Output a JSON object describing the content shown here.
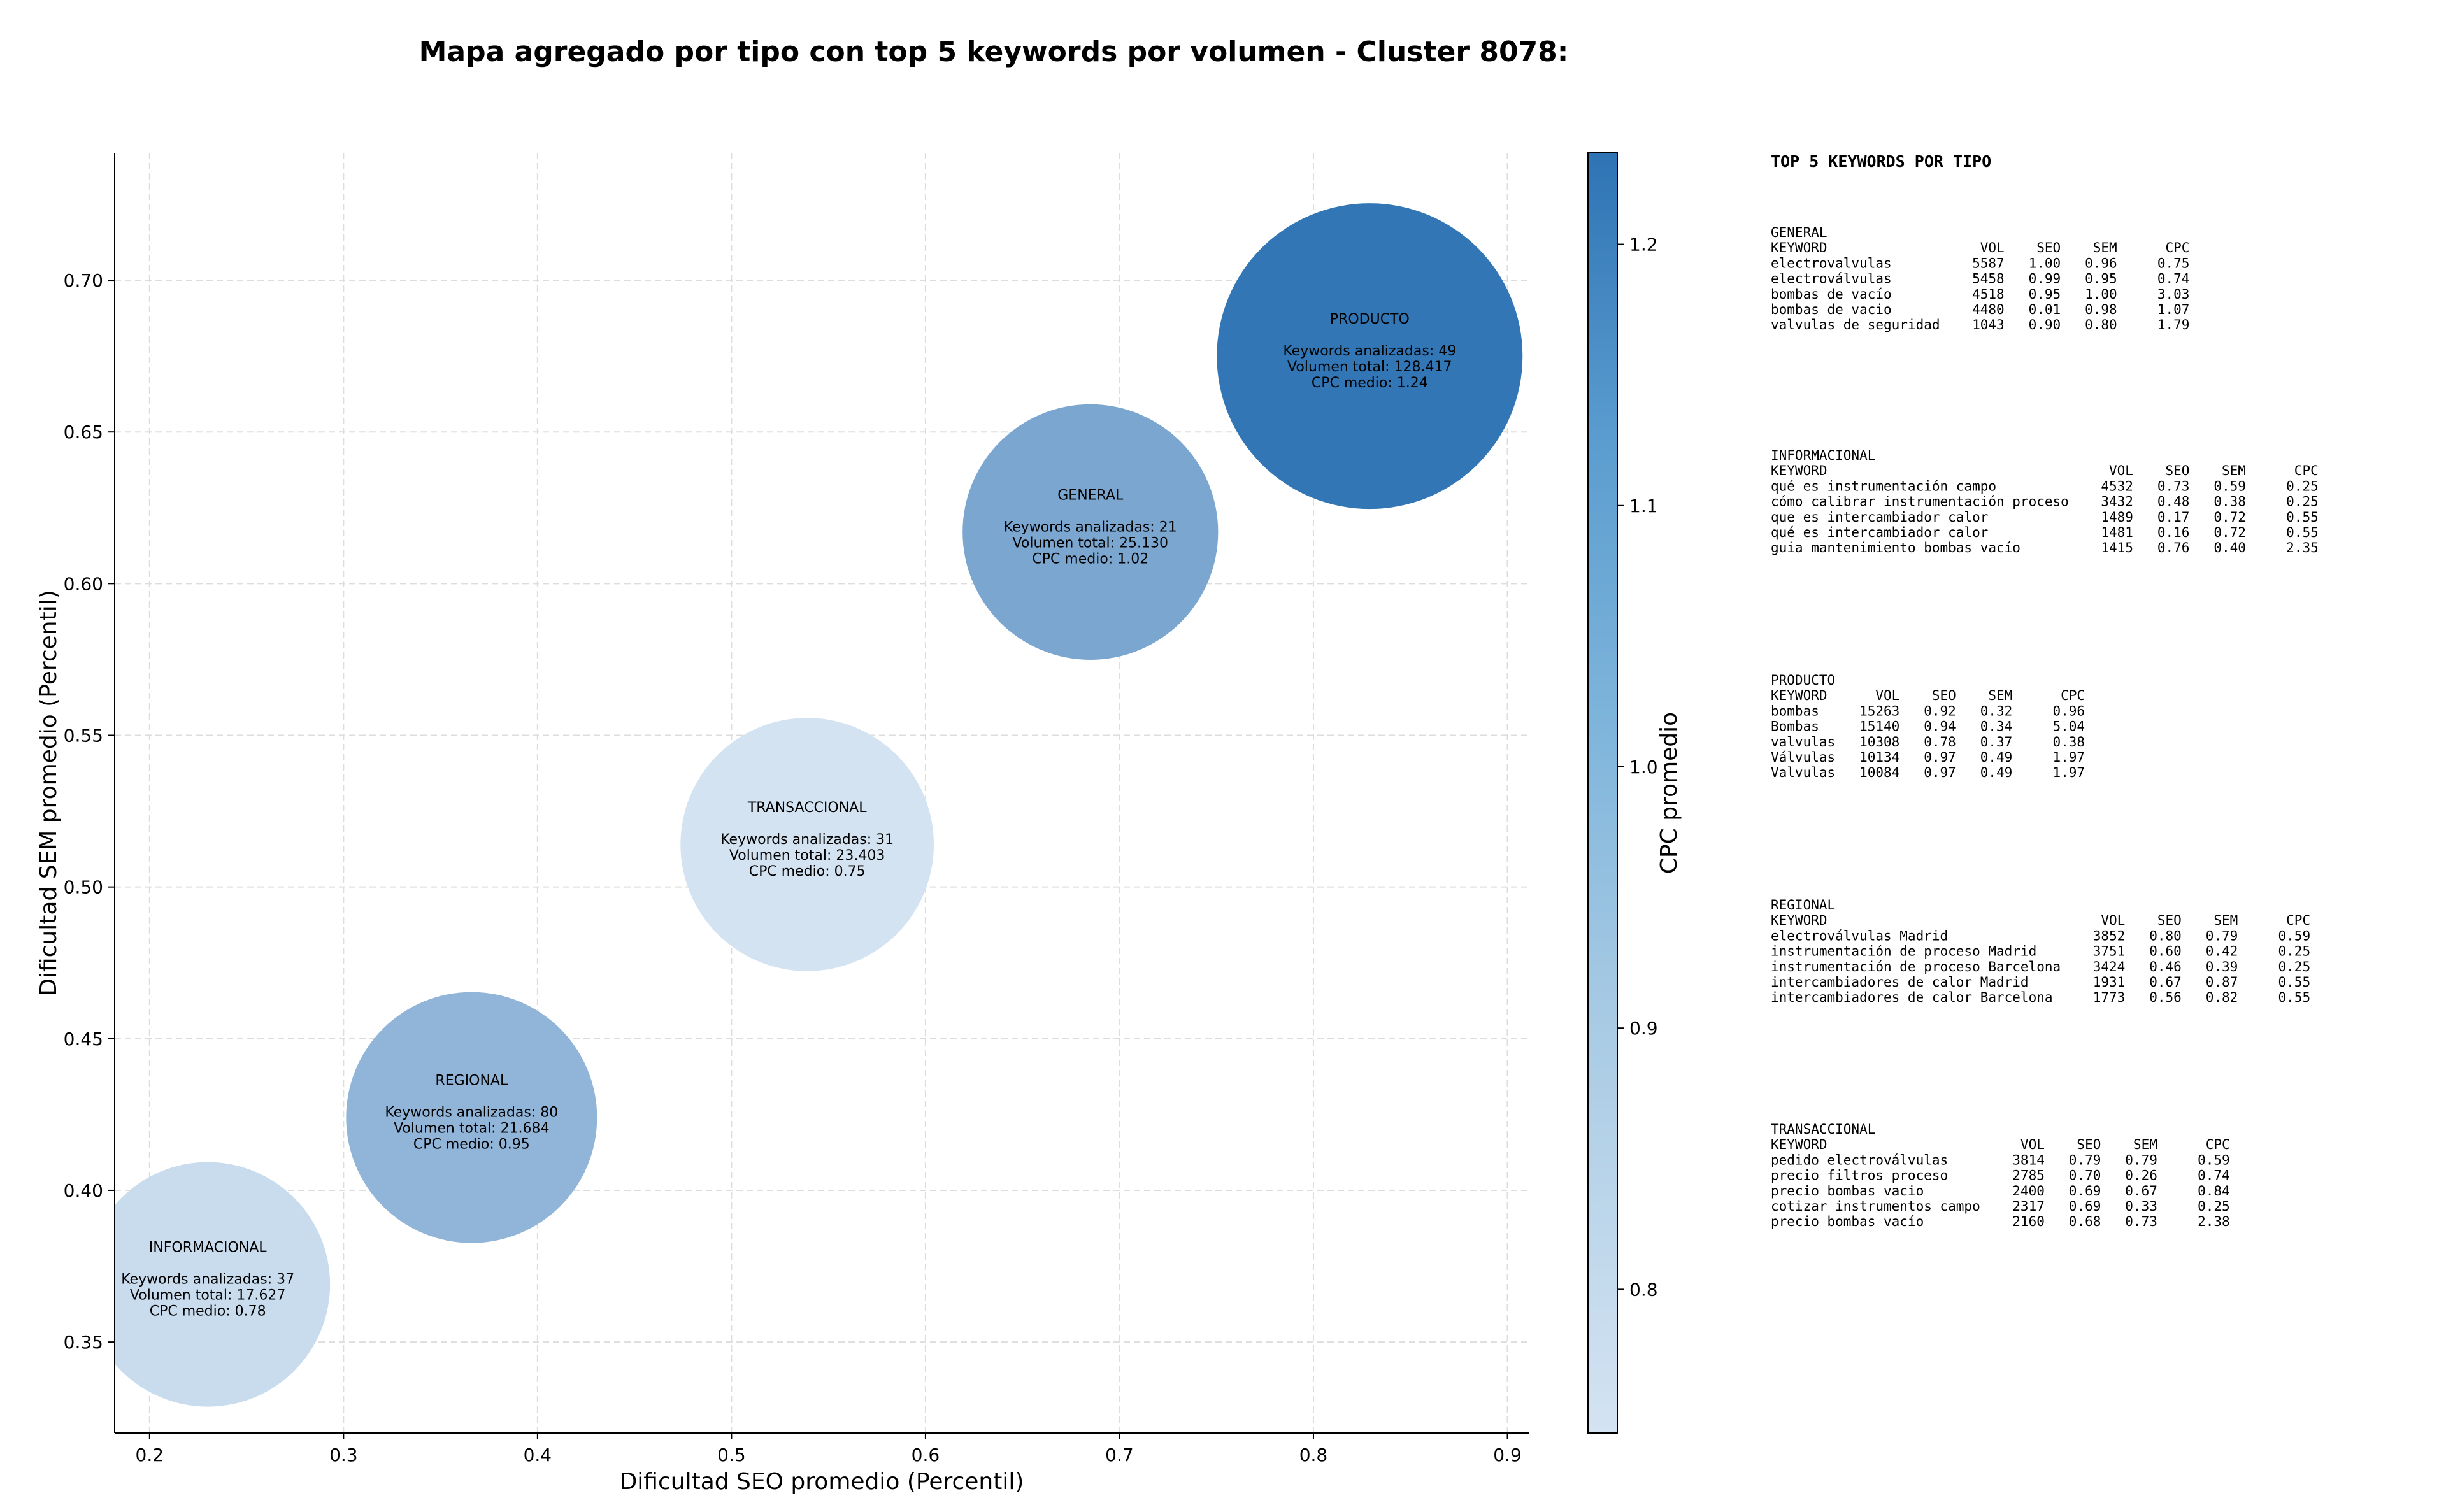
{
  "chart_data": {
    "type": "scatter",
    "title": "Mapa agregado por tipo con top 5 keywords por volumen - Cluster 8078:",
    "xlabel": "Dificultad SEO promedio (Percentil)",
    "ylabel": "Dificultad SEM promedio (Percentil)",
    "xlim": [
      0.182,
      0.911
    ],
    "ylim": [
      0.32,
      0.742
    ],
    "xticks": [
      "0.2",
      "0.3",
      "0.4",
      "0.5",
      "0.6",
      "0.7",
      "0.8",
      "0.9"
    ],
    "yticks": [
      "0.35",
      "0.40",
      "0.45",
      "0.50",
      "0.55",
      "0.60",
      "0.65",
      "0.70"
    ],
    "grid": true,
    "colorbar": {
      "label": "CPC promedio",
      "range": [
        0.745,
        1.235
      ],
      "ticks": [
        "0.8",
        "0.9",
        "1.0",
        "1.1",
        "1.2"
      ],
      "color_low": "#d4e3f2",
      "color_high": "#2e73b4"
    },
    "points": [
      {
        "name": "PRODUCTO",
        "x": 0.829,
        "y": 0.675,
        "volume": 128417,
        "keywords": 49,
        "cpc": 1.24,
        "lines": [
          "PRODUCTO",
          "",
          "Keywords analizadas: 49",
          "Volumen total: 128.417",
          "CPC medio: 1.24"
        ]
      },
      {
        "name": "GENERAL",
        "x": 0.685,
        "y": 0.617,
        "volume": 25130,
        "keywords": 21,
        "cpc": 1.02,
        "lines": [
          "GENERAL",
          "",
          "Keywords analizadas: 21",
          "Volumen total: 25.130",
          "CPC medio: 1.02"
        ]
      },
      {
        "name": "TRANSACCIONAL",
        "x": 0.539,
        "y": 0.514,
        "volume": 23403,
        "keywords": 31,
        "cpc": 0.75,
        "lines": [
          "TRANSACCIONAL",
          "",
          "Keywords analizadas: 31",
          "Volumen total: 23.403",
          "CPC medio: 0.75"
        ]
      },
      {
        "name": "REGIONAL",
        "x": 0.366,
        "y": 0.424,
        "volume": 21684,
        "keywords": 80,
        "cpc": 0.95,
        "lines": [
          "REGIONAL",
          "",
          "Keywords analizadas: 80",
          "Volumen total: 21.684",
          "CPC medio: 0.95"
        ]
      },
      {
        "name": "INFORMACIONAL",
        "x": 0.23,
        "y": 0.369,
        "volume": 17627,
        "keywords": 37,
        "cpc": 0.78,
        "lines": [
          "INFORMACIONAL",
          "",
          "Keywords analizadas: 37",
          "Volumen total: 17.627",
          "CPC medio: 0.78"
        ]
      }
    ]
  },
  "side_panel": {
    "title": "TOP 5 KEYWORDS POR TIPO",
    "tables": [
      {
        "name": "GENERAL",
        "lines": [
          "GENERAL",
          "KEYWORD                   VOL    SEO    SEM      CPC",
          "electrovalvulas          5587   1.00   0.96     0.75",
          "electroválvulas          5458   0.99   0.95     0.74",
          "bombas de vacío          4518   0.95   1.00     3.03",
          "bombas de vacio          4480   0.01   0.98     1.07",
          "valvulas de seguridad    1043   0.90   0.80     1.79"
        ]
      },
      {
        "name": "INFORMACIONAL",
        "lines": [
          "INFORMACIONAL",
          "KEYWORD                                   VOL    SEO    SEM      CPC",
          "qué es instrumentación campo             4532   0.73   0.59     0.25",
          "cómo calibrar instrumentación proceso    3432   0.48   0.38     0.25",
          "que es intercambiador calor              1489   0.17   0.72     0.55",
          "qué es intercambiador calor              1481   0.16   0.72     0.55",
          "guia mantenimiento bombas vacío          1415   0.76   0.40     2.35"
        ]
      },
      {
        "name": "PRODUCTO",
        "lines": [
          "PRODUCTO",
          "KEYWORD      VOL    SEO    SEM      CPC",
          "bombas     15263   0.92   0.32     0.96",
          "Bombas     15140   0.94   0.34     5.04",
          "valvulas   10308   0.78   0.37     0.38",
          "Válvulas   10134   0.97   0.49     1.97",
          "Valvulas   10084   0.97   0.49     1.97"
        ]
      },
      {
        "name": "REGIONAL",
        "lines": [
          "REGIONAL",
          "KEYWORD                                  VOL    SEO    SEM      CPC",
          "electroválvulas Madrid                  3852   0.80   0.79     0.59",
          "instrumentación de proceso Madrid       3751   0.60   0.42     0.25",
          "instrumentación de proceso Barcelona    3424   0.46   0.39     0.25",
          "intercambiadores de calor Madrid        1931   0.67   0.87     0.55",
          "intercambiadores de calor Barcelona     1773   0.56   0.82     0.55"
        ]
      },
      {
        "name": "TRANSACCIONAL",
        "lines": [
          "TRANSACCIONAL",
          "KEYWORD                        VOL    SEO    SEM      CPC",
          "pedido electroválvulas        3814   0.79   0.79     0.59",
          "precio filtros proceso        2785   0.70   0.26     0.74",
          "precio bombas vacio           2400   0.69   0.67     0.84",
          "cotizar instrumentos campo    2317   0.69   0.33     0.25",
          "precio bombas vacío           2160   0.68   0.73     2.38"
        ]
      }
    ]
  }
}
